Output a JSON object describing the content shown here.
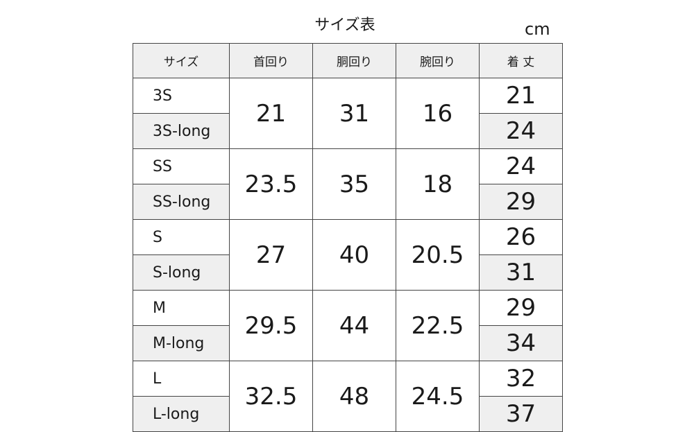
{
  "title": "サイズ表",
  "unit": "cm",
  "headers": [
    "サイズ",
    "首回り",
    "胴回り",
    "腕回り",
    "着 丈"
  ],
  "groups": [
    {
      "sizes": [
        "3S",
        "3S-long"
      ],
      "neck": "21",
      "chest": "31",
      "arm": "16",
      "length": [
        "21",
        "24"
      ]
    },
    {
      "sizes": [
        "SS",
        "SS-long"
      ],
      "neck": "23.5",
      "chest": "35",
      "arm": "18",
      "length": [
        "24",
        "29"
      ]
    },
    {
      "sizes": [
        "S",
        "S-long"
      ],
      "neck": "27",
      "chest": "40",
      "arm": "20.5",
      "length": [
        "26",
        "31"
      ]
    },
    {
      "sizes": [
        "M",
        "M-long"
      ],
      "neck": "29.5",
      "chest": "44",
      "arm": "22.5",
      "length": [
        "29",
        "34"
      ]
    },
    {
      "sizes": [
        "L",
        "L-long"
      ],
      "neck": "32.5",
      "chest": "48",
      "arm": "24.5",
      "length": [
        "32",
        "37"
      ]
    }
  ],
  "colors": {
    "header_bg": "#efefef",
    "long_row_bg": "#efefef",
    "border": "#444444"
  }
}
